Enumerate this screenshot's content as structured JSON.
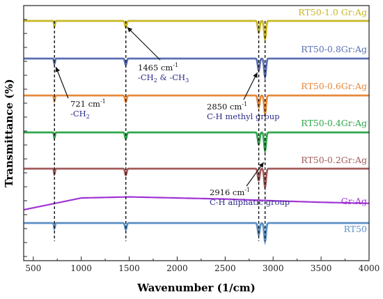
{
  "chart_data": {
    "type": "line",
    "xlabel": "Wavenumber (1/cm)",
    "ylabel": "Transmittance (%)",
    "xlim": [
      400,
      4000
    ],
    "x_ticks": [
      "500",
      "1000",
      "1500",
      "2000",
      "2500",
      "3000",
      "3500",
      "4000"
    ],
    "grid": false,
    "series": [
      {
        "name": "RT50-1.0 Gr:Ag",
        "color": "#c9b722",
        "offset": 0.0,
        "baseline_x": [
          400,
          4000
        ],
        "baseline_y": [
          0,
          0
        ]
      },
      {
        "name": "RT50-0.8Gr:Ag",
        "color": "#5a6fb2",
        "offset": 1,
        "baseline_x": [
          400,
          4000
        ],
        "baseline_y": [
          0,
          0
        ]
      },
      {
        "name": "RT50-0.6Gr:Ag",
        "color": "#e5893a",
        "offset": 2,
        "baseline_x": [
          400,
          4000
        ],
        "baseline_y": [
          0,
          0
        ]
      },
      {
        "name": "RT50-0.4Gr:Ag",
        "color": "#2fa64b",
        "offset": 3,
        "baseline_x": [
          400,
          4000
        ],
        "baseline_y": [
          0,
          0
        ]
      },
      {
        "name": "RT50-0.2Gr:Ag",
        "color": "#a35a5a",
        "offset": 4,
        "baseline_x": [
          400,
          4000
        ],
        "baseline_y": [
          0,
          0
        ]
      },
      {
        "name": "Gr:Ag",
        "color": "#a233d6",
        "offset": 5,
        "baseline_x": [
          400,
          1000,
          1500,
          2000,
          2500,
          3000,
          3500,
          4000
        ],
        "baseline_y": [
          0.0,
          0.55,
          0.6,
          0.55,
          0.5,
          0.42,
          0.35,
          0.3
        ]
      },
      {
        "name": "RT50",
        "color": "#5b8fc4",
        "offset": 6,
        "baseline_x": [
          400,
          4000
        ],
        "baseline_y": [
          0,
          0
        ]
      }
    ],
    "peaks": [
      {
        "x": 721,
        "depth": 0.25,
        "width": 8
      },
      {
        "x": 1465,
        "depth": 0.3,
        "width": 12
      },
      {
        "x": 2850,
        "depth": 0.55,
        "width": 14
      },
      {
        "x": 2916,
        "depth": 0.85,
        "width": 14
      }
    ],
    "dashed_lines_x": [
      721,
      1465,
      2850,
      2916
    ],
    "annotations": [
      {
        "id": "a721",
        "lines": [
          "721 cm",
          "-CH"
        ],
        "sup": "-1",
        "sub": "2",
        "color_line1": "#111111",
        "color_line2": "#2a2a8a",
        "x_data": 721
      },
      {
        "id": "a1465",
        "lines": [
          "1465 cm",
          "-CH",
          " & -CH"
        ],
        "sup": "-1",
        "sub": "2",
        "sub2": "3",
        "color_line1": "#111111",
        "color_line2": "#2a2a8a",
        "x_data": 1465
      },
      {
        "id": "a2850",
        "lines": [
          "2850 cm",
          "C-H methyl group"
        ],
        "sup": "-1",
        "color_line1": "#111111",
        "color_line2": "#2a2a8a",
        "x_data": 2850
      },
      {
        "id": "a2916",
        "lines": [
          "2916 cm",
          "C-H aliphatic group"
        ],
        "sup": "-1",
        "color_line1": "#111111",
        "color_line2": "#2a2a8a",
        "x_data": 2916
      }
    ]
  }
}
